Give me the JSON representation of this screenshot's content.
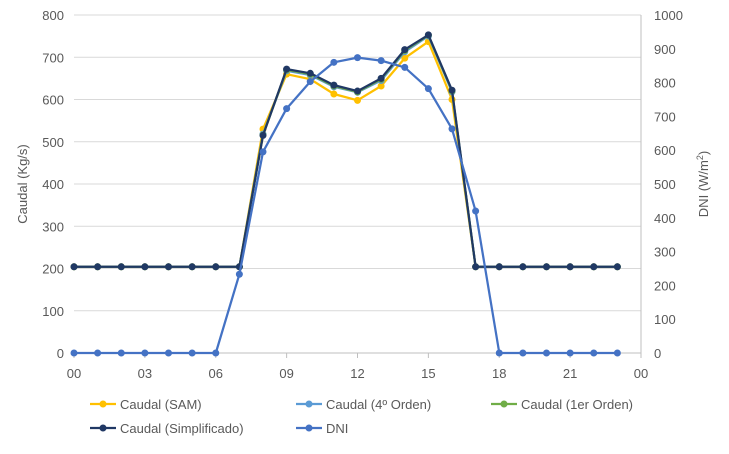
{
  "chart_data": {
    "type": "line",
    "title": "",
    "x_ticks": [
      "00",
      "03",
      "06",
      "09",
      "12",
      "15",
      "18",
      "21",
      "00"
    ],
    "xlim": [
      0,
      24
    ],
    "x": [
      0,
      1,
      2,
      3,
      4,
      5,
      6,
      7,
      8,
      9,
      10,
      11,
      12,
      13,
      14,
      15,
      16,
      17,
      18,
      19,
      20,
      21,
      22,
      23
    ],
    "y_left": {
      "label": "Caudal (Kg/s)",
      "ylim": [
        0,
        800
      ],
      "ticks": [
        "0",
        "100",
        "200",
        "300",
        "400",
        "500",
        "600",
        "700",
        "800"
      ]
    },
    "y_right": {
      "label_main": "DNI (W/m",
      "label_sup": "2",
      "label_end": ")",
      "ylim": [
        0,
        1000
      ],
      "ticks": [
        "0",
        "100",
        "200",
        "300",
        "400",
        "500",
        "600",
        "700",
        "800",
        "900",
        "1000"
      ]
    },
    "grid": "horizontal",
    "legend_position": "bottom",
    "series": [
      {
        "name": "Caudal (SAM)",
        "color": "#FFC000",
        "axis": "left",
        "values": [
          204,
          204,
          204,
          204,
          204,
          204,
          204,
          204,
          530,
          660,
          648,
          613,
          598,
          632,
          698,
          737,
          600,
          204,
          204,
          204,
          204,
          204,
          204,
          204
        ]
      },
      {
        "name": "Caudal (4º Orden)",
        "color": "#5B9BD5",
        "axis": "left",
        "values": [
          204,
          204,
          204,
          204,
          204,
          204,
          204,
          204,
          518,
          668,
          658,
          630,
          617,
          645,
          713,
          750,
          618,
          204,
          204,
          204,
          204,
          204,
          204,
          204
        ]
      },
      {
        "name": "Caudal (1er Orden)",
        "color": "#70AD47",
        "axis": "left",
        "values": [
          204,
          204,
          204,
          204,
          204,
          204,
          204,
          204,
          516,
          670,
          660,
          632,
          618,
          648,
          716,
          752,
          620,
          204,
          204,
          204,
          204,
          204,
          204,
          204
        ]
      },
      {
        "name": "Caudal (Simplificado)",
        "color": "#203864",
        "axis": "left",
        "values": [
          204,
          204,
          204,
          204,
          204,
          204,
          204,
          204,
          515,
          672,
          662,
          634,
          620,
          650,
          718,
          753,
          622,
          204,
          204,
          204,
          204,
          204,
          204,
          204
        ]
      },
      {
        "name": "DNI",
        "color": "#4472C4",
        "axis": "right",
        "values": [
          0,
          0,
          0,
          0,
          0,
          0,
          0,
          233,
          595,
          723,
          803,
          860,
          874,
          865,
          845,
          782,
          663,
          420,
          0,
          0,
          0,
          0,
          0,
          0
        ]
      }
    ]
  }
}
